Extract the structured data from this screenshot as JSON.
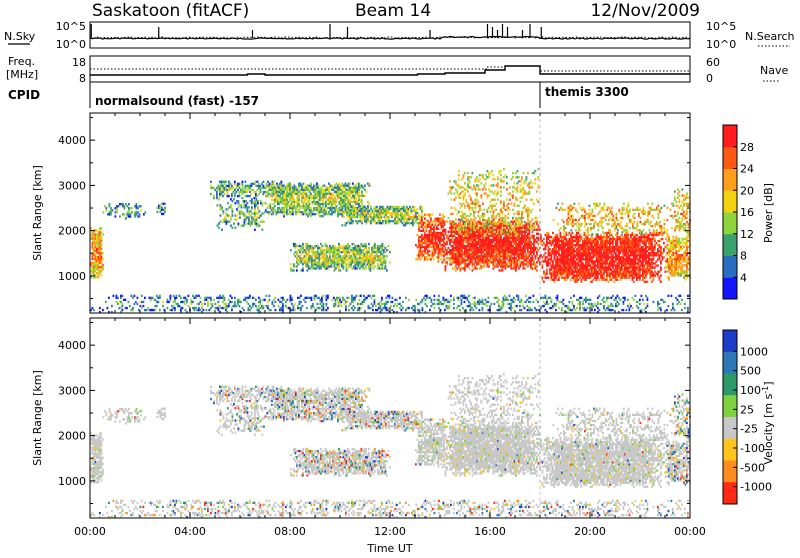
{
  "header": {
    "site": "Saskatoon (fitACF)",
    "beam": "Beam 14",
    "date": "12/Nov/2009"
  },
  "top_panels": {
    "nsky_label": "N.Sky",
    "nsearch_label": "N.Search",
    "freq_label_1": "Freq.",
    "freq_label_2": "[MHz]",
    "nave_label": "Nave",
    "cpid_label": "CPID",
    "noise_left_ticks": [
      "10^5",
      "10^0"
    ],
    "noise_right_ticks": [
      "10^5",
      "10^0"
    ],
    "freq_left_ticks": [
      "18",
      "8"
    ],
    "nave_right_ticks": [
      "60",
      "0"
    ],
    "cpid_programs": [
      {
        "name": "normalsound (fast) -157",
        "start_hour": 0,
        "end_hour": 18
      },
      {
        "name": "themis 3300",
        "start_hour": 18,
        "end_hour": 24
      }
    ]
  },
  "chart_data": [
    {
      "type": "heatmap",
      "title": "Power",
      "parameter": "Power",
      "ylabel": "Slant Range [km]",
      "xlabel": "",
      "colorbar_label": "Power [dB]",
      "xlim_hours": [
        0,
        24
      ],
      "ylim_km": [
        180,
        4600
      ],
      "y_ticks": [
        "1000",
        "2000",
        "3000",
        "4000"
      ],
      "colorbar_ticks": [
        "4",
        "8",
        "12",
        "16",
        "20",
        "24",
        "28"
      ],
      "colorbar_colors": [
        "#1414ff",
        "#2a6ec0",
        "#3aa36d",
        "#8fd43a",
        "#f2d211",
        "#ff9e1a",
        "#ff5a14",
        "#ff1e1e"
      ],
      "colorbar_range": [
        0,
        30
      ]
    },
    {
      "type": "heatmap",
      "title": "Velocity",
      "parameter": "Velocity",
      "ylabel": "Slant Range [km]",
      "xlabel": "Time UT",
      "colorbar_label": "Velocity [m s",
      "colorbar_label_sup": "-1",
      "colorbar_label_end": "]",
      "xlim_hours": [
        0,
        24
      ],
      "ylim_km": [
        180,
        4600
      ],
      "y_ticks": [
        "1000",
        "2000",
        "3000",
        "4000"
      ],
      "x_ticks": [
        "00:00",
        "04:00",
        "08:00",
        "12:00",
        "16:00",
        "20:00",
        "00:00"
      ],
      "colorbar_ticks": [
        "1000",
        "500",
        "100",
        "25",
        "-25",
        "-100",
        "-500",
        "-1000"
      ],
      "colorbar_colors": [
        "#1e3cc8",
        "#2e78b8",
        "#2d9a6a",
        "#7fd13f",
        "#c8c8c8",
        "#ffc41e",
        "#ff8c1e",
        "#ff2a14"
      ],
      "colorbar_range": [
        -1000,
        1000
      ]
    }
  ],
  "backscatter_regions": [
    {
      "t0": 0.0,
      "t1": 0.5,
      "r0": 950,
      "r1": 2050,
      "base": 0.55,
      "dens": 0.9,
      "vel": "slow"
    },
    {
      "t0": 0.5,
      "t1": 2.2,
      "r0": 2250,
      "r1": 2600,
      "base": 0.15,
      "dens": 0.35,
      "vel": "slow"
    },
    {
      "t0": 2.6,
      "t1": 3.0,
      "r0": 2350,
      "r1": 2600,
      "base": 0.15,
      "dens": 0.5,
      "vel": "slow"
    },
    {
      "t0": 4.8,
      "t1": 8.0,
      "r0": 2700,
      "r1": 3100,
      "base": 0.2,
      "dens": 0.55,
      "vel": "mixed"
    },
    {
      "t0": 5.0,
      "t1": 7.0,
      "r0": 2000,
      "r1": 2700,
      "base": 0.2,
      "dens": 0.35,
      "vel": "mixed"
    },
    {
      "t0": 7.0,
      "t1": 11.2,
      "r0": 2300,
      "r1": 3050,
      "base": 0.3,
      "dens": 0.75,
      "vel": "mixed"
    },
    {
      "t0": 10.0,
      "t1": 13.3,
      "r0": 2100,
      "r1": 2550,
      "base": 0.3,
      "dens": 0.75,
      "vel": "mixed"
    },
    {
      "t0": 8.0,
      "t1": 12.0,
      "r0": 1100,
      "r1": 1700,
      "base": 0.3,
      "dens": 0.8,
      "vel": "mixed"
    },
    {
      "t0": 13.0,
      "t1": 14.2,
      "r0": 1300,
      "r1": 2350,
      "base": 0.75,
      "dens": 0.75,
      "vel": "slow"
    },
    {
      "t0": 14.0,
      "t1": 18.0,
      "r0": 1100,
      "r1": 2250,
      "base": 0.8,
      "dens": 0.9,
      "vel": "slow"
    },
    {
      "t0": 14.3,
      "t1": 18.0,
      "r0": 1900,
      "r1": 3350,
      "base": 0.45,
      "dens": 0.3,
      "vel": "slow"
    },
    {
      "t0": 18.0,
      "t1": 23.0,
      "r0": 850,
      "r1": 1950,
      "base": 0.85,
      "dens": 0.9,
      "vel": "slow"
    },
    {
      "t0": 18.5,
      "t1": 23.3,
      "r0": 1900,
      "r1": 2600,
      "base": 0.5,
      "dens": 0.35,
      "vel": "slow"
    },
    {
      "t0": 23.0,
      "t1": 24.0,
      "r0": 900,
      "r1": 1900,
      "base": 0.55,
      "dens": 0.75,
      "vel": "mixed"
    },
    {
      "t0": 23.3,
      "t1": 24.0,
      "r0": 1900,
      "r1": 2900,
      "base": 0.5,
      "dens": 0.45,
      "vel": "fast"
    },
    {
      "t0": 0.0,
      "t1": 24.0,
      "r0": 180,
      "r1": 560,
      "base": 0.15,
      "dens": 0.35,
      "vel": "mixed"
    }
  ]
}
